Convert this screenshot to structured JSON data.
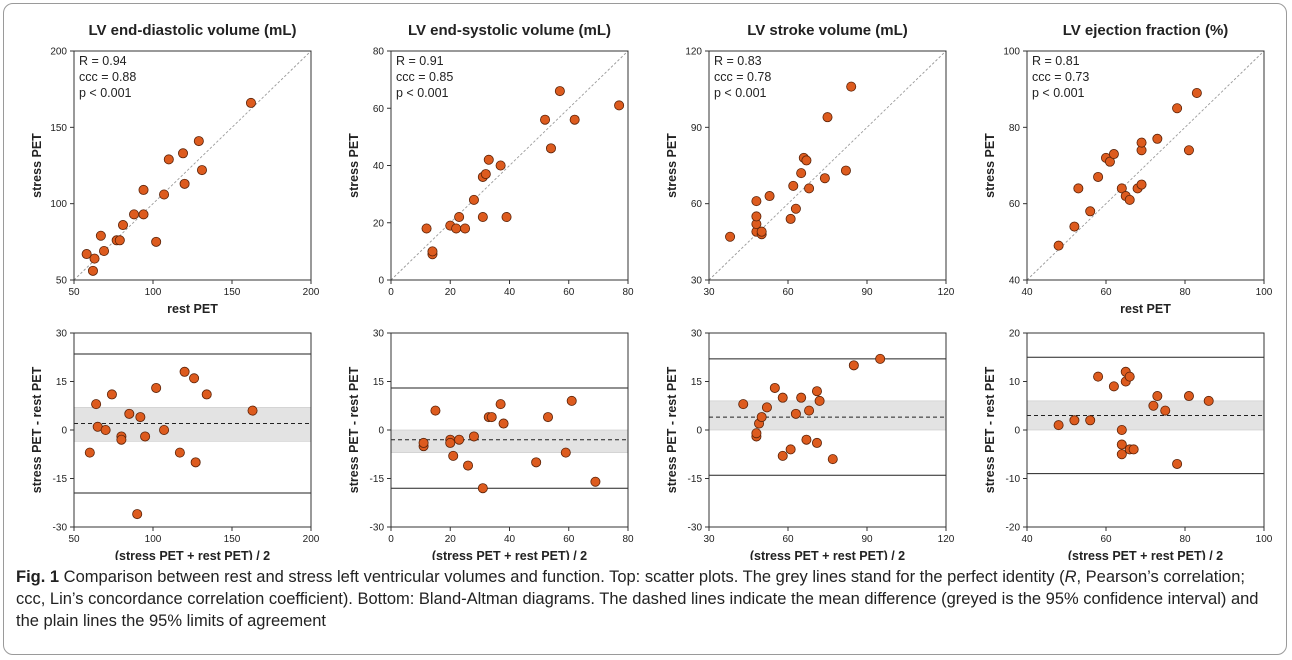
{
  "chart_data": [
    {
      "panel": "scatter",
      "type": "scatter",
      "title": "LV end-diastolic volume (mL)",
      "xlabel": "rest PET",
      "ylabel": "stress  PET",
      "xlim": [
        50,
        200
      ],
      "ylim": [
        50,
        200
      ],
      "xticks": [
        50,
        100,
        150,
        200
      ],
      "yticks": [
        50,
        100,
        150,
        200
      ],
      "identity_line": true,
      "stats": [
        "R = 0.94",
        "ccc = 0.88",
        "p < 0.001"
      ],
      "points": [
        [
          58,
          67
        ],
        [
          62,
          56
        ],
        [
          63,
          64
        ],
        [
          67,
          79
        ],
        [
          69,
          69
        ],
        [
          77,
          76
        ],
        [
          79,
          76
        ],
        [
          81,
          86
        ],
        [
          88,
          93
        ],
        [
          94,
          93
        ],
        [
          94,
          109
        ],
        [
          102,
          75
        ],
        [
          107,
          106
        ],
        [
          110,
          129
        ],
        [
          119,
          133
        ],
        [
          120,
          113
        ],
        [
          129,
          141
        ],
        [
          131,
          122
        ],
        [
          162,
          166
        ]
      ]
    },
    {
      "panel": "scatter",
      "type": "scatter",
      "title": "LV end-systolic volume (mL)",
      "xlabel": "",
      "ylabel": "stress  PET",
      "xlim": [
        0,
        80
      ],
      "ylim": [
        0,
        80
      ],
      "xticks": [
        0,
        20,
        40,
        60,
        80
      ],
      "yticks": [
        0,
        20,
        40,
        60,
        80
      ],
      "identity_line": true,
      "stats": [
        "R = 0.91",
        "ccc = 0.85",
        "p < 0.001"
      ],
      "points": [
        [
          12,
          18
        ],
        [
          14,
          9
        ],
        [
          14,
          10
        ],
        [
          20,
          19
        ],
        [
          22,
          18
        ],
        [
          23,
          22
        ],
        [
          25,
          18
        ],
        [
          28,
          28
        ],
        [
          31,
          22
        ],
        [
          31,
          36
        ],
        [
          32,
          37
        ],
        [
          33,
          42
        ],
        [
          37,
          40
        ],
        [
          39,
          22
        ],
        [
          52,
          56
        ],
        [
          54,
          46
        ],
        [
          57,
          66
        ],
        [
          62,
          56
        ],
        [
          77,
          61
        ]
      ]
    },
    {
      "panel": "scatter",
      "type": "scatter",
      "title": "LV stroke volume (mL)",
      "xlabel": "",
      "ylabel": "stress  PET",
      "xlim": [
        30,
        120
      ],
      "ylim": [
        30,
        120
      ],
      "xticks": [
        30,
        60,
        90,
        120
      ],
      "yticks": [
        30,
        60,
        90,
        120
      ],
      "identity_line": true,
      "stats": [
        "R = 0.83",
        "ccc = 0.78",
        "p < 0.001"
      ],
      "points": [
        [
          38,
          47
        ],
        [
          48,
          49
        ],
        [
          48,
          52
        ],
        [
          48,
          55
        ],
        [
          48,
          61
        ],
        [
          50,
          48
        ],
        [
          50,
          49
        ],
        [
          53,
          63
        ],
        [
          61,
          54
        ],
        [
          62,
          67
        ],
        [
          63,
          58
        ],
        [
          65,
          72
        ],
        [
          66,
          78
        ],
        [
          67,
          77
        ],
        [
          68,
          66
        ],
        [
          74,
          70
        ],
        [
          75,
          94
        ],
        [
          82,
          73
        ],
        [
          84,
          106
        ]
      ]
    },
    {
      "panel": "scatter",
      "type": "scatter",
      "title": "LV ejection fraction (%)",
      "xlabel": "rest PET",
      "ylabel": "stress  PET",
      "xlim": [
        40,
        100
      ],
      "ylim": [
        40,
        100
      ],
      "xticks": [
        40,
        60,
        80,
        100
      ],
      "yticks": [
        40,
        60,
        80,
        100
      ],
      "identity_line": true,
      "stats": [
        "R = 0.81",
        "ccc = 0.73",
        "p < 0.001"
      ],
      "points": [
        [
          48,
          49
        ],
        [
          52,
          54
        ],
        [
          53,
          64
        ],
        [
          56,
          58
        ],
        [
          58,
          67
        ],
        [
          60,
          72
        ],
        [
          61,
          71
        ],
        [
          62,
          73
        ],
        [
          64,
          64
        ],
        [
          65,
          62
        ],
        [
          66,
          61
        ],
        [
          68,
          64
        ],
        [
          69,
          65
        ],
        [
          69,
          74
        ],
        [
          69,
          76
        ],
        [
          73,
          77
        ],
        [
          78,
          85
        ],
        [
          81,
          74
        ],
        [
          83,
          89
        ]
      ]
    },
    {
      "panel": "bland-altman",
      "type": "scatter",
      "xlabel": "(stress PET + rest PET) / 2",
      "ylabel": "stress PET - rest PET",
      "xlim": [
        50,
        200
      ],
      "ylim": [
        -30,
        30
      ],
      "xticks": [
        50,
        100,
        150,
        200
      ],
      "yticks": [
        -30,
        -15,
        0,
        15,
        30
      ],
      "mean_diff": 2,
      "ci": [
        -3.5,
        7
      ],
      "loa": [
        -19.5,
        23.5
      ],
      "points": [
        [
          60,
          -7
        ],
        [
          64,
          8
        ],
        [
          65,
          1
        ],
        [
          70,
          0
        ],
        [
          74,
          11
        ],
        [
          80,
          -2
        ],
        [
          80,
          -3
        ],
        [
          85,
          5
        ],
        [
          90,
          -26
        ],
        [
          92,
          4
        ],
        [
          95,
          -2
        ],
        [
          102,
          13
        ],
        [
          107,
          0
        ],
        [
          117,
          -7
        ],
        [
          120,
          18
        ],
        [
          126,
          16
        ],
        [
          127,
          -10
        ],
        [
          134,
          11
        ],
        [
          163,
          6
        ]
      ]
    },
    {
      "panel": "bland-altman",
      "type": "scatter",
      "xlabel": "(stress PET + rest PET) / 2",
      "ylabel": "stress PET - rest PET",
      "xlim": [
        0,
        80
      ],
      "ylim": [
        -30,
        30
      ],
      "xticks": [
        0,
        20,
        40,
        60,
        80
      ],
      "yticks": [
        -30,
        -15,
        0,
        15,
        30
      ],
      "mean_diff": -3,
      "ci": [
        -7,
        0
      ],
      "loa": [
        -18,
        13
      ],
      "points": [
        [
          11,
          -5
        ],
        [
          11,
          -4
        ],
        [
          15,
          6
        ],
        [
          20,
          -3
        ],
        [
          20,
          -4
        ],
        [
          21,
          -8
        ],
        [
          23,
          -3
        ],
        [
          26,
          -11
        ],
        [
          28,
          -2
        ],
        [
          31,
          -18
        ],
        [
          33,
          4
        ],
        [
          34,
          4
        ],
        [
          37,
          8
        ],
        [
          38,
          2
        ],
        [
          49,
          -10
        ],
        [
          53,
          4
        ],
        [
          59,
          -7
        ],
        [
          61,
          9
        ],
        [
          69,
          -16
        ]
      ]
    },
    {
      "panel": "bland-altman",
      "type": "scatter",
      "xlabel": "(stress PET + rest PET) / 2",
      "ylabel": "stress PET - rest PET",
      "xlim": [
        30,
        120
      ],
      "ylim": [
        -30,
        30
      ],
      "xticks": [
        30,
        60,
        90,
        120
      ],
      "yticks": [
        -30,
        -15,
        0,
        15,
        30
      ],
      "mean_diff": 4,
      "ci": [
        0,
        9
      ],
      "loa": [
        -14,
        22
      ],
      "points": [
        [
          43,
          8
        ],
        [
          48,
          -2
        ],
        [
          48,
          -1
        ],
        [
          49,
          2
        ],
        [
          50,
          4
        ],
        [
          52,
          7
        ],
        [
          55,
          13
        ],
        [
          58,
          10
        ],
        [
          58,
          -8
        ],
        [
          61,
          -6
        ],
        [
          63,
          5
        ],
        [
          65,
          10
        ],
        [
          67,
          -3
        ],
        [
          68,
          6
        ],
        [
          71,
          12
        ],
        [
          71,
          -4
        ],
        [
          72,
          9
        ],
        [
          77,
          -9
        ],
        [
          85,
          20
        ],
        [
          95,
          22
        ]
      ]
    },
    {
      "panel": "bland-altman",
      "type": "scatter",
      "xlabel": "(stress PET + rest PET) / 2",
      "ylabel": "stress PET - rest PET",
      "xlim": [
        40,
        100
      ],
      "ylim": [
        -20,
        20
      ],
      "xticks": [
        40,
        60,
        80,
        100
      ],
      "yticks": [
        -20,
        -10,
        0,
        10,
        20
      ],
      "mean_diff": 3,
      "ci": [
        0,
        6
      ],
      "loa": [
        -9,
        15
      ],
      "points": [
        [
          48,
          1
        ],
        [
          52,
          2
        ],
        [
          56,
          2
        ],
        [
          58,
          11
        ],
        [
          62,
          9
        ],
        [
          64,
          0
        ],
        [
          64,
          -3
        ],
        [
          64,
          -5
        ],
        [
          65,
          10
        ],
        [
          65,
          12
        ],
        [
          66,
          11
        ],
        [
          66,
          -4
        ],
        [
          67,
          -4
        ],
        [
          72,
          5
        ],
        [
          73,
          7
        ],
        [
          75,
          4
        ],
        [
          78,
          -7
        ],
        [
          81,
          7
        ],
        [
          86,
          6
        ]
      ]
    }
  ],
  "caption": {
    "label": "Fig. 1",
    "t1": " Comparison between rest and stress left ventricular volumes and function. Top: scatter plots. The grey lines stand for the perfect identity (",
    "t2": "R",
    "t3": ", Pearson’s correlation; ccc, Lin’s concordance correlation coefficient). Bottom: Bland-Altman diagrams. The dashed lines indicate the mean difference (greyed is the 95% confidence interval) and the plain lines the 95% limits of agreement"
  },
  "colors": {
    "point": "#dd5b1e",
    "point_edge": "#5a2208",
    "identity": "#9a9a9a",
    "ci_band": "#e3e3e3"
  }
}
